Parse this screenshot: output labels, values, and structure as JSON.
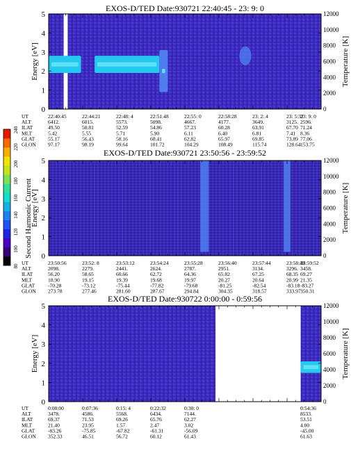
{
  "colorbar": {
    "label": "Second Harmonic Current",
    "ticks": [
      "240",
      "220",
      "200",
      "180",
      "160",
      "140",
      "120",
      "100",
      "80"
    ],
    "colors": [
      "#000000",
      "#3a007a",
      "#4b00c8",
      "#1c25e8",
      "#1f52f5",
      "#1b82f2",
      "#13b3e6",
      "#12dcd0",
      "#2ee29c",
      "#7be450",
      "#c4e31b",
      "#f2e400",
      "#f8b000",
      "#f66a00",
      "#e81800"
    ]
  },
  "panels": [
    {
      "title": "EXOS-D/TED   Date:930721  22:40:45 - 23: 9: 0",
      "y_label": "Energy [eV]",
      "y2_label": "Temperature [K]",
      "y_ticks": [
        "0",
        "1",
        "2",
        "3",
        "4",
        "5"
      ],
      "y2_ticks": [
        "0",
        "2000",
        "4000",
        "6000",
        "8000",
        "10000",
        "12000"
      ],
      "info_rows": [
        [
          "UT",
          "22:40:45",
          "22:44:21",
          "22:48: 4",
          "22:51:48",
          "22:55: 0",
          "22:58:28",
          "23: 2: 4",
          "23: 5:32",
          "23: 9: 0"
        ],
        [
          "ALT",
          "6412.",
          "6015.",
          "5573.",
          "5098.",
          "4667.",
          "4177.",
          "3649.",
          "3125.",
          "2596."
        ],
        [
          "ILAT",
          "49.50",
          "50.81",
          "52.59",
          "54.86",
          "57.23",
          "60.28",
          "63.91",
          "67.70",
          "71.24"
        ],
        [
          "MLT",
          "5.42",
          "5.55",
          "5.71",
          "5.90",
          "6.11",
          "6.40",
          "6.81",
          "7.41",
          "8.36"
        ],
        [
          "GLAT",
          "55.17",
          "56.43",
          "58.16",
          "60.41",
          "62.82",
          "65.97",
          "69.85",
          "73.89",
          "77.06"
        ],
        [
          "GLON",
          "97.17",
          "98.19",
          "99.64",
          "101.72",
          "104.29",
          "108.49",
          "115.74",
          "128.64",
          "153.75"
        ]
      ]
    },
    {
      "title": "EXOS-D/TED   Date:930721  23:50:56 - 23:59:52",
      "y_label": "Energy [eV]",
      "y2_label": "Temperature [K]",
      "y_ticks": [
        "0",
        "1",
        "2",
        "3",
        "4",
        "5"
      ],
      "y2_ticks": [
        "0",
        "2000",
        "4000",
        "6000",
        "8000",
        "10000",
        "12000"
      ],
      "info_rows": [
        [
          "UT",
          "23:50:56",
          "23:52: 8",
          "23:53:12",
          "23:54:24",
          "23:55:28",
          "23:56:40",
          "23:57:44",
          "23:58:48",
          "23:59:52"
        ],
        [
          "ALT",
          "2098.",
          "2279.",
          "2441.",
          "2624.",
          "2787.",
          "2951.",
          "3134.",
          "3296.",
          "3458."
        ],
        [
          "ILAT",
          "56.20",
          "58.65",
          "60.66",
          "62.72",
          "64.36",
          "65.82",
          "67.25",
          "68.35",
          "69.27"
        ],
        [
          "MLT",
          "18.90",
          "19.15",
          "19.39",
          "19.68",
          "19.97",
          "20.27",
          "20.64",
          "20.99",
          "21.35"
        ],
        [
          "GLAT",
          "-70.28",
          "-73.12",
          "-75.44",
          "-77.82",
          "-79.68",
          "-81.25",
          "-82.54",
          "-83.18",
          "-83.27"
        ],
        [
          "GLON",
          "273.78",
          "277.46",
          "281.60",
          "287.67",
          "294.84",
          "304.35",
          "318.57",
          "333.97",
          "350.31"
        ]
      ]
    },
    {
      "title": "EXOS-D/TED   Date:930722  0:00:00 - 0:59:56",
      "y_label": "Energy [eV]",
      "y2_label": "Temperature [K]",
      "y_ticks": [
        "0",
        "1",
        "2",
        "3",
        "4",
        "5"
      ],
      "y2_ticks": [
        "0",
        "2000",
        "4000",
        "6000",
        "8000",
        "10000",
        "12000"
      ],
      "info_rows": [
        [
          "UT",
          "0:00:00",
          "0:07:36",
          "0:15: 4",
          "0:22:32",
          "0:30: 0",
          "",
          "",
          "",
          "0:54:36"
        ],
        [
          "ALT",
          "3478.",
          "4586.",
          "5568.",
          "6434.",
          "7144.",
          "",
          "",
          "",
          "8533."
        ],
        [
          "ILAT",
          "69.37",
          "71.53",
          "69.26",
          "65.76",
          "62.27",
          "",
          "",
          "",
          "53.51"
        ],
        [
          "MLT",
          "21.40",
          "23.95",
          "1.57",
          "2.47",
          "3.02",
          "",
          "",
          "",
          "4.00"
        ],
        [
          "GLAT",
          "-83.26",
          "-75.85",
          "-67.82",
          "-61.31",
          "-56.09",
          "",
          "",
          "",
          "-45.00"
        ],
        [
          "GLON",
          "352.33",
          "46.51",
          "56.72",
          "60.12",
          "61.43",
          "",
          "",
          "",
          "61.63"
        ]
      ]
    }
  ],
  "chart_data": [
    {
      "type": "heatmap",
      "title": "EXOS-D/TED   Date:930721  22:40:45 - 23: 9: 0",
      "xlabel": "UT",
      "ylabel": "Energy [eV]",
      "y2label": "Temperature [K]",
      "ylim": [
        0,
        5
      ],
      "y2lim": [
        0,
        12000
      ],
      "x_ticks": [
        "22:40:45",
        "22:44:21",
        "22:48: 4",
        "22:51:48",
        "22:55: 0",
        "22:58:28",
        "23: 2: 4",
        "23: 5:32",
        "23: 9: 0"
      ],
      "features": [
        {
          "kind": "gap",
          "x": [
            0.44,
            0.56
          ]
        },
        {
          "kind": "band",
          "x": [
            0.0,
            0.95
          ],
          "y": [
            1.9,
            2.8
          ],
          "level": "cyan"
        },
        {
          "kind": "band",
          "x": [
            1.35,
            3.25
          ],
          "y": [
            1.9,
            2.8
          ],
          "level": "cyan"
        },
        {
          "kind": "band",
          "x": [
            3.25,
            3.5
          ],
          "y": [
            0.9,
            3.1
          ],
          "level": "light"
        },
        {
          "kind": "blob",
          "x": [
            5.6,
            5.95
          ],
          "y": [
            2.3,
            3.3
          ],
          "level": "light"
        }
      ]
    },
    {
      "type": "heatmap",
      "title": "EXOS-D/TED   Date:930721  23:50:56 - 23:59:52",
      "xlabel": "UT",
      "ylabel": "Energy [eV]",
      "y2label": "Temperature [K]",
      "ylim": [
        0,
        5
      ],
      "y2lim": [
        0,
        12000
      ],
      "x_ticks": [
        "23:50:56",
        "23:52: 8",
        "23:53:12",
        "23:54:24",
        "23:55:28",
        "23:56:40",
        "23:57:44",
        "23:58:48",
        "23:59:52"
      ],
      "features": [
        {
          "kind": "stripe",
          "x": [
            4.45,
            4.7
          ],
          "y": [
            0.2,
            5.0
          ],
          "level": "light"
        },
        {
          "kind": "stripe",
          "x": [
            6.9,
            7.1
          ],
          "y": [
            0.2,
            5.0
          ],
          "level": "light"
        }
      ]
    },
    {
      "type": "heatmap",
      "title": "EXOS-D/TED   Date:930722  0:00:00 - 0:59:56",
      "xlabel": "UT",
      "ylabel": "Energy [eV]",
      "y2label": "Temperature [K]",
      "ylim": [
        0,
        5
      ],
      "y2lim": [
        0,
        12000
      ],
      "x_ticks": [
        "0:00:00",
        "0:07:36",
        "0:15: 4",
        "0:22:32",
        "0:30: 0",
        "",
        "",
        "",
        "0:54:36"
      ],
      "features": [
        {
          "kind": "gap",
          "x": [
            4.9,
            7.4
          ]
        },
        {
          "kind": "band",
          "x": [
            7.4,
            8.0
          ],
          "y": [
            1.5,
            2.1
          ],
          "level": "cyan"
        }
      ]
    }
  ]
}
